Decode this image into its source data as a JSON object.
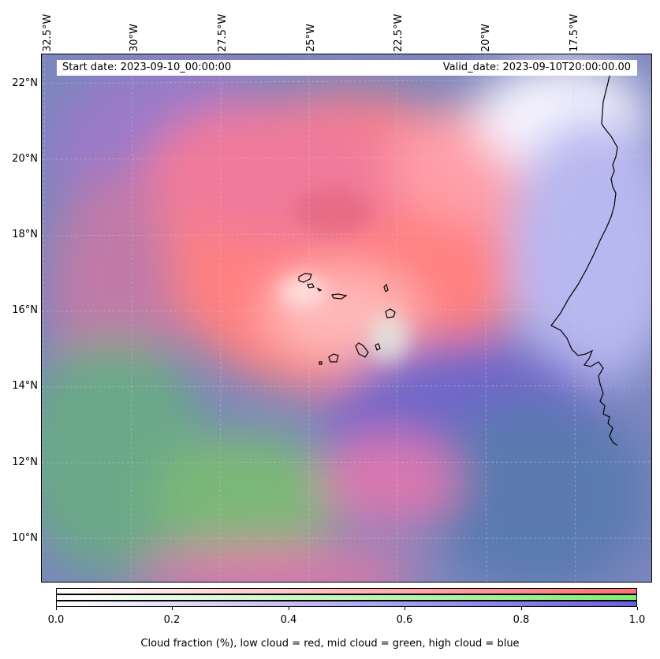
{
  "map": {
    "start_date": "Start date: 2023-09-10_00:00:00",
    "valid_date": "Valid_date: 2023-09-10T20:00:00.00",
    "lon_labels": [
      "32.5°W",
      "30°W",
      "27.5°W",
      "25°W",
      "22.5°W",
      "20°W",
      "17.5°W"
    ],
    "lat_labels": [
      "22°N",
      "20°N",
      "18°N",
      "16°N",
      "14°N",
      "12°N",
      "10°N"
    ],
    "features": [
      "Cape Verde islands",
      "West African coastline"
    ]
  },
  "colorbar": {
    "ticks": [
      "0.0",
      "0.2",
      "0.4",
      "0.6",
      "0.8",
      "1.0"
    ],
    "caption": "Cloud fraction (%), low cloud = red, mid cloud = green, high cloud = blue",
    "colors": {
      "low": "#ff7070",
      "mid": "#80ee70",
      "high": "#6a60dd"
    }
  }
}
